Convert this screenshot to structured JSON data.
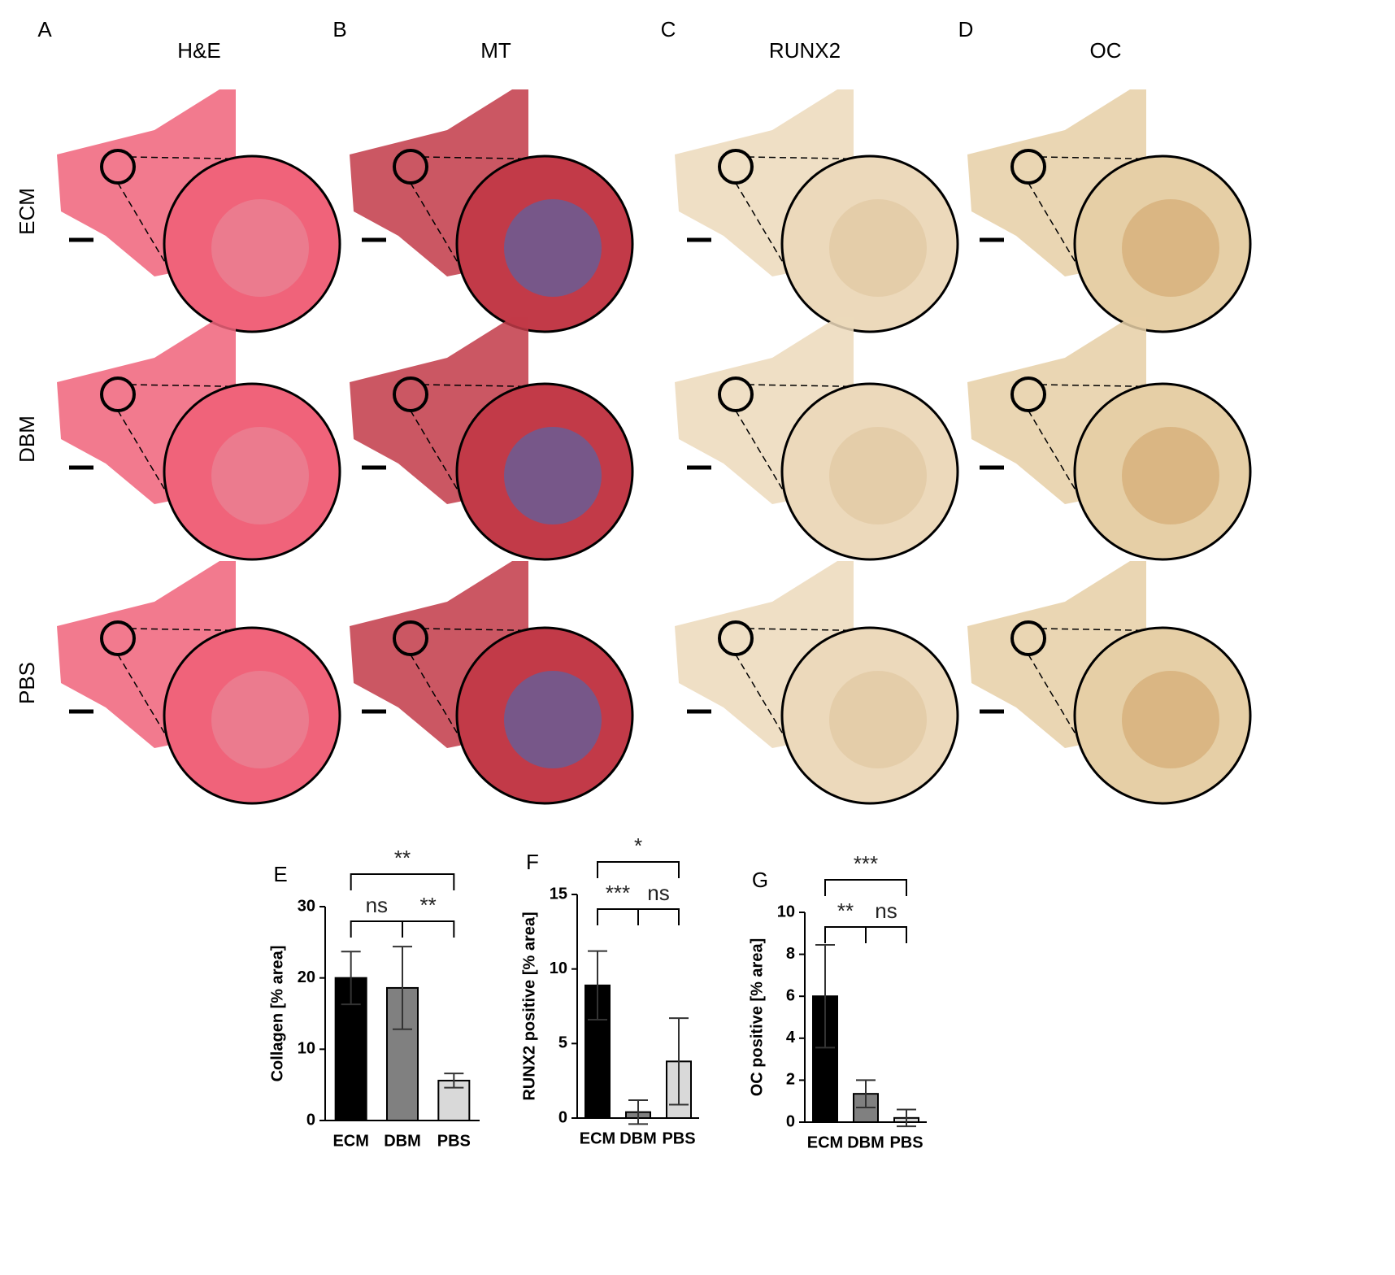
{
  "panel_labels": [
    "A",
    "B",
    "C",
    "D"
  ],
  "column_titles": [
    "H&E",
    "MT",
    "RUNX2",
    "OC"
  ],
  "row_labels": [
    "ECM",
    "DBM",
    "PBS"
  ],
  "chart_data": [
    {
      "type": "bar",
      "panel_label": "E",
      "y_label": "Collagen [% area]",
      "categories": [
        "ECM",
        "DBM",
        "PBS"
      ],
      "values": [
        20,
        18.6,
        5.6
      ],
      "errors": [
        3.7,
        5.8,
        1
      ],
      "colors": [
        "#000000",
        "#808080",
        "#d9d9d9"
      ],
      "ylim": [
        0,
        30
      ],
      "yticks": [
        0,
        10,
        20,
        30
      ],
      "comparisons": [
        {
          "label": "**",
          "groups": [
            "ECM",
            "PBS"
          ]
        },
        {
          "label": "ns",
          "groups": [
            "ECM",
            "DBM"
          ]
        },
        {
          "label": "**",
          "groups": [
            "DBM",
            "PBS"
          ]
        }
      ]
    },
    {
      "type": "bar",
      "panel_label": "F",
      "y_label": "RUNX2 positive [% area]",
      "categories": [
        "ECM",
        "DBM",
        "PBS"
      ],
      "values": [
        8.9,
        0.4,
        3.8
      ],
      "errors": [
        2.3,
        0.8,
        2.9
      ],
      "colors": [
        "#000000",
        "#808080",
        "#d9d9d9"
      ],
      "ylim": [
        0,
        15
      ],
      "yticks": [
        0,
        5,
        10,
        15
      ],
      "comparisons": [
        {
          "label": "*",
          "groups": [
            "ECM",
            "PBS"
          ]
        },
        {
          "label": "***",
          "groups": [
            "ECM",
            "DBM"
          ]
        },
        {
          "label": "ns",
          "groups": [
            "DBM",
            "PBS"
          ]
        }
      ]
    },
    {
      "type": "bar",
      "panel_label": "G",
      "y_label": "OC positive [% area]",
      "categories": [
        "ECM",
        "DBM",
        "PBS"
      ],
      "values": [
        6.0,
        1.35,
        0.2
      ],
      "errors": [
        2.45,
        0.65,
        0.4
      ],
      "colors": [
        "#000000",
        "#808080",
        "#d9d9d9"
      ],
      "ylim": [
        0,
        10
      ],
      "yticks": [
        0,
        2,
        4,
        6,
        8,
        10
      ],
      "comparisons": [
        {
          "label": "***",
          "groups": [
            "ECM",
            "PBS"
          ]
        },
        {
          "label": "**",
          "groups": [
            "ECM",
            "DBM"
          ]
        },
        {
          "label": "ns",
          "groups": [
            "DBM",
            "PBS"
          ]
        }
      ]
    }
  ]
}
